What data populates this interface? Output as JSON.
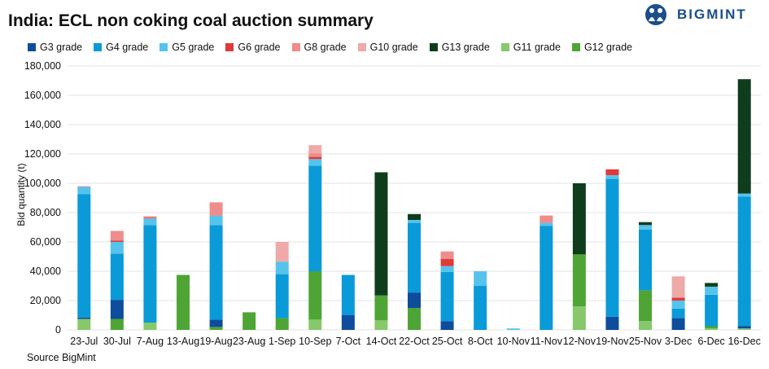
{
  "title": "India: ECL non coking coal auction summary",
  "brand": {
    "name": "BIGMINT",
    "icon": "people-logo-icon",
    "color": "#1a4f8a"
  },
  "source": "Source BigMint",
  "chart_data": {
    "type": "bar",
    "stacked": true,
    "title": "India: ECL non coking coal auction summary",
    "xlabel": "",
    "ylabel": "Bid quantity (t)",
    "ylim": [
      0,
      180000
    ],
    "yticks": [
      0,
      20000,
      40000,
      60000,
      80000,
      100000,
      120000,
      140000,
      160000,
      180000
    ],
    "ytick_labels": [
      "0",
      "20,000",
      "40,000",
      "60,000",
      "80,000",
      "100,000",
      "120,000",
      "140,000",
      "160,000",
      "180,000"
    ],
    "grid": true,
    "legend_position": "top-left",
    "categories": [
      "23-Jul",
      "30-Jul",
      "7-Aug",
      "13-Aug",
      "19-Aug",
      "23-Aug",
      "1-Sep",
      "10-Sep",
      "7-Oct",
      "14-Oct",
      "22-Oct",
      "25-Oct",
      "8-Oct",
      "10-Nov",
      "11-Nov",
      "12-Nov",
      "19-Nov",
      "25-Nov",
      "3-Dec",
      "6-Dec",
      "16-Dec"
    ],
    "series": [
      {
        "name": "G11 grade",
        "color": "#86c86b",
        "values": [
          7500,
          0,
          5000,
          0,
          0,
          0,
          0,
          7000,
          0,
          6500,
          0,
          0,
          0,
          0,
          0,
          16000,
          0,
          6000,
          0,
          1000,
          1000
        ]
      },
      {
        "name": "G12 grade",
        "color": "#4ea535",
        "values": [
          0,
          7500,
          0,
          37500,
          2000,
          12000,
          8000,
          33000,
          0,
          17000,
          15000,
          0,
          0,
          0,
          0,
          35500,
          0,
          21000,
          0,
          1500,
          0
        ]
      },
      {
        "name": "G3 grade",
        "color": "#0e4c9c",
        "values": [
          1000,
          13000,
          0,
          0,
          5000,
          0,
          0,
          0,
          10000,
          0,
          10500,
          6000,
          0,
          0,
          0,
          0,
          9000,
          0,
          8000,
          0,
          1500
        ]
      },
      {
        "name": "G4 grade",
        "color": "#0a9ad8",
        "values": [
          84000,
          31500,
          66500,
          0,
          64500,
          0,
          30000,
          72000,
          27500,
          0,
          47500,
          33500,
          30000,
          0,
          71000,
          0,
          94000,
          41500,
          6500,
          21500,
          88500
        ]
      },
      {
        "name": "G5 grade",
        "color": "#55c3ec",
        "values": [
          5000,
          8000,
          4500,
          0,
          6500,
          0,
          8500,
          4500,
          0,
          0,
          2000,
          4000,
          10000,
          1000,
          2000,
          0,
          2500,
          3000,
          5500,
          5500,
          2000
        ]
      },
      {
        "name": "G6 grade",
        "color": "#e03a3a",
        "values": [
          0,
          1000,
          500,
          0,
          0,
          0,
          0,
          1500,
          0,
          0,
          0,
          5000,
          0,
          0,
          0,
          0,
          4000,
          0,
          2000,
          0,
          0
        ]
      },
      {
        "name": "G8 grade",
        "color": "#ef8c8c",
        "values": [
          500,
          6500,
          1000,
          0,
          9000,
          0,
          0,
          2500,
          0,
          0,
          0,
          5000,
          0,
          0,
          5000,
          0,
          0,
          0,
          0,
          0,
          0
        ]
      },
      {
        "name": "G10 grade",
        "color": "#efa9a9",
        "values": [
          0,
          0,
          0,
          0,
          0,
          0,
          13500,
          5500,
          0,
          0,
          0,
          0,
          0,
          0,
          0,
          0,
          0,
          0,
          14500,
          0,
          0
        ]
      },
      {
        "name": "G13 grade",
        "color": "#0f3d1c",
        "values": [
          0,
          0,
          0,
          0,
          0,
          0,
          0,
          0,
          0,
          84000,
          4000,
          0,
          0,
          0,
          0,
          48500,
          0,
          2000,
          0,
          2500,
          78000
        ]
      }
    ],
    "legend_order": [
      "G3 grade",
      "G4 grade",
      "G5 grade",
      "G6 grade",
      "G8 grade",
      "G10 grade",
      "G13 grade",
      "G11 grade",
      "G12 grade"
    ]
  }
}
